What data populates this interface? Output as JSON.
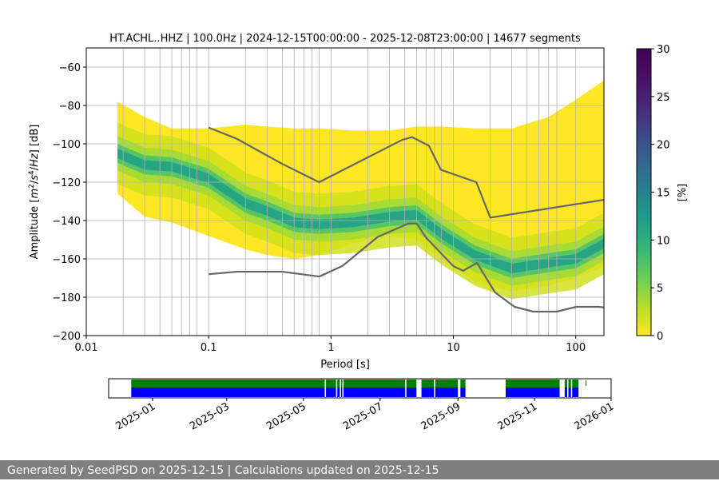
{
  "chart_data": [
    {
      "type": "heatmap",
      "title": "HT.ACHL..HHZ | 100.0Hz | 2024-12-15T00:00:00 - 2025-12-08T23:00:00 | 14677 segments",
      "xlabel": "Period [s]",
      "ylabel_parts": [
        "Amplitude [",
        "m",
        "2",
        "/",
        "s",
        "4",
        "/",
        "Hz",
        "] [dB]"
      ],
      "x_scale": "log",
      "xlim": [
        0.01,
        170
      ],
      "ylim": [
        -200,
        -50
      ],
      "x_ticks": [
        0.01,
        0.1,
        1,
        10,
        100
      ],
      "x_tick_labels": [
        "0.01",
        "0.1",
        "1",
        "10",
        "100"
      ],
      "y_ticks": [
        -200,
        -180,
        -160,
        -140,
        -120,
        -100,
        -80,
        -60
      ],
      "y_tick_labels": [
        "−200",
        "−180",
        "−160",
        "−140",
        "−120",
        "−100",
        "−80",
        "−60"
      ],
      "grid_periods": [
        0.02,
        0.03,
        0.04,
        0.05,
        0.06,
        0.07,
        0.08,
        0.1,
        0.2,
        0.3,
        0.4,
        0.5,
        0.6,
        0.7,
        0.8,
        1,
        2,
        3,
        4,
        5,
        6,
        7,
        8,
        10,
        20,
        30,
        40,
        50,
        60,
        70,
        100
      ],
      "psd_band": [
        {
          "period": 0.018,
          "min": -126,
          "max": -78,
          "mode": -105
        },
        {
          "period": 0.03,
          "min": -138,
          "max": -86,
          "mode": -111
        },
        {
          "period": 0.05,
          "min": -141,
          "max": -92,
          "mode": -112
        },
        {
          "period": 0.1,
          "min": -148,
          "max": -92,
          "mode": -118
        },
        {
          "period": 0.2,
          "min": -155,
          "max": -90,
          "mode": -131
        },
        {
          "period": 0.3,
          "min": -158,
          "max": -91,
          "mode": -135
        },
        {
          "period": 0.5,
          "min": -160,
          "max": -92,
          "mode": -141
        },
        {
          "period": 0.8,
          "min": -158,
          "max": -92,
          "mode": -142
        },
        {
          "period": 1.5,
          "min": -152,
          "max": -93,
          "mode": -141
        },
        {
          "period": 3,
          "min": -148,
          "max": -93,
          "mode": -138
        },
        {
          "period": 5,
          "min": -150,
          "max": -91,
          "mode": -137
        },
        {
          "period": 8,
          "min": -160,
          "max": -91,
          "mode": -147
        },
        {
          "period": 15,
          "min": -172,
          "max": -92,
          "mode": -158
        },
        {
          "period": 30,
          "min": -177,
          "max": -92,
          "mode": -165
        },
        {
          "period": 60,
          "min": -174,
          "max": -86,
          "mode": -162
        },
        {
          "period": 100,
          "min": -170,
          "max": -77,
          "mode": -160
        },
        {
          "period": 170,
          "min": -164,
          "max": -67,
          "mode": -152
        }
      ],
      "model_curves": [
        {
          "points": [
            [
              0.1,
              -91.5
            ],
            [
              0.17,
              -97.4
            ],
            [
              0.4,
              -110.5
            ],
            [
              0.8,
              -120
            ],
            [
              3.8,
              -98
            ],
            [
              4.6,
              -96.5
            ],
            [
              6.3,
              -101
            ],
            [
              7.9,
              -113.5
            ],
            [
              15.4,
              -120
            ],
            [
              20,
              -138.5
            ],
            [
              354,
              -126
            ]
          ]
        },
        {
          "points": [
            [
              0.1,
              -168
            ],
            [
              0.17,
              -166.7
            ],
            [
              0.4,
              -166.7
            ],
            [
              0.8,
              -169.2
            ],
            [
              1.24,
              -163.7
            ],
            [
              2.4,
              -148.6
            ],
            [
              4.3,
              -141.5
            ],
            [
              5.0,
              -141.5
            ],
            [
              6.0,
              -149
            ],
            [
              10,
              -163.8
            ],
            [
              12,
              -166.2
            ],
            [
              15.6,
              -162.1
            ],
            [
              21.9,
              -177.5
            ],
            [
              31.6,
              -185
            ],
            [
              45,
              -187.5
            ],
            [
              70,
              -187.5
            ],
            [
              101,
              -185
            ],
            [
              154,
              -185
            ],
            [
              328,
              -187.5
            ]
          ]
        }
      ],
      "colorbar": {
        "label": "[%]",
        "range": [
          0,
          30
        ],
        "ticks": [
          0,
          5,
          10,
          15,
          20,
          25,
          30
        ],
        "tick_labels": [
          "0",
          "5",
          "10",
          "15",
          "20",
          "25",
          "30"
        ],
        "colormap": "viridis_r"
      }
    },
    {
      "type": "timeline",
      "x_type": "date",
      "xlim": [
        "2024-11-27",
        "2026-01-01"
      ],
      "x_ticks": [
        "2025-01-01",
        "2025-03-01",
        "2025-05-01",
        "2025-07-01",
        "2025-09-01",
        "2025-11-01",
        "2026-01-01"
      ],
      "x_tick_labels": [
        "2025-01",
        "2025-03",
        "2025-05",
        "2025-07",
        "2025-09",
        "2025-11",
        "2026-01"
      ],
      "colors": {
        "available": "#008000",
        "used": "#0000ff"
      },
      "available_intervals": [
        [
          "2024-12-15",
          "2025-09-07"
        ],
        [
          "2025-10-09",
          "2025-12-08"
        ]
      ],
      "used_gaps": [
        [
          "2025-05-18",
          "2025-05-19"
        ],
        [
          "2025-05-27",
          "2025-05-28"
        ],
        [
          "2025-05-30",
          "2025-05-31"
        ],
        [
          "2025-06-01",
          "2025-06-02"
        ],
        [
          "2025-07-21",
          "2025-07-22"
        ],
        [
          "2025-07-30",
          "2025-08-03"
        ],
        [
          "2025-08-13",
          "2025-08-14"
        ],
        [
          "2025-09-01",
          "2025-09-03"
        ],
        [
          "2025-09-14",
          "2025-09-27"
        ],
        [
          "2025-09-29",
          "2025-10-09"
        ],
        [
          "2025-11-21",
          "2025-11-25"
        ],
        [
          "2025-11-27",
          "2025-11-28"
        ],
        [
          "2025-11-30",
          "2025-12-01"
        ],
        [
          "2025-12-06",
          "2025-12-08"
        ]
      ]
    }
  ],
  "footer": {
    "text": "Generated by SeedPSD on 2025-12-15 | Calculations updated on 2025-12-15"
  }
}
